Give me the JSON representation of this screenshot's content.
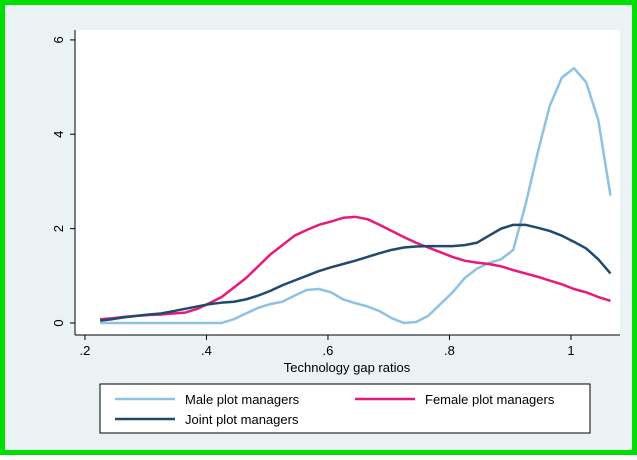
{
  "chart_data": {
    "type": "line",
    "xlabel": "Technology gap ratios",
    "x": [
      0.225,
      0.245,
      0.265,
      0.285,
      0.305,
      0.325,
      0.345,
      0.365,
      0.385,
      0.405,
      0.425,
      0.445,
      0.465,
      0.485,
      0.505,
      0.525,
      0.545,
      0.565,
      0.585,
      0.605,
      0.625,
      0.645,
      0.665,
      0.685,
      0.705,
      0.725,
      0.745,
      0.765,
      0.785,
      0.805,
      0.825,
      0.845,
      0.865,
      0.885,
      0.905,
      0.925,
      0.945,
      0.965,
      0.985,
      1.005,
      1.025,
      1.045,
      1.065
    ],
    "series": [
      {
        "name": "Male plot managers",
        "color": "#8ec2e4",
        "values": [
          0,
          0,
          0,
          0,
          0,
          0,
          0,
          0,
          0,
          0,
          0,
          0.08,
          0.2,
          0.32,
          0.4,
          0.45,
          0.58,
          0.7,
          0.72,
          0.65,
          0.5,
          0.42,
          0.35,
          0.25,
          0.1,
          0,
          0.02,
          0.15,
          0.4,
          0.65,
          0.95,
          1.15,
          1.27,
          1.35,
          1.55,
          2.5,
          3.6,
          4.6,
          5.2,
          5.4,
          5.1,
          4.3,
          2.7
        ]
      },
      {
        "name": "Female plot managers",
        "color": "#e8197a",
        "values": [
          0.08,
          0.1,
          0.13,
          0.15,
          0.17,
          0.18,
          0.2,
          0.22,
          0.3,
          0.42,
          0.55,
          0.75,
          0.95,
          1.2,
          1.45,
          1.65,
          1.85,
          1.97,
          2.08,
          2.15,
          2.23,
          2.25,
          2.2,
          2.08,
          1.95,
          1.82,
          1.7,
          1.6,
          1.5,
          1.4,
          1.32,
          1.28,
          1.25,
          1.2,
          1.12,
          1.05,
          0.98,
          0.9,
          0.82,
          0.72,
          0.65,
          0.55,
          0.47
        ]
      },
      {
        "name": "Joint plot managers",
        "color": "#1f4a6e",
        "values": [
          0.05,
          0.08,
          0.12,
          0.15,
          0.18,
          0.2,
          0.25,
          0.3,
          0.35,
          0.4,
          0.43,
          0.45,
          0.5,
          0.58,
          0.68,
          0.8,
          0.9,
          1.0,
          1.1,
          1.18,
          1.25,
          1.32,
          1.4,
          1.48,
          1.55,
          1.6,
          1.62,
          1.63,
          1.63,
          1.63,
          1.65,
          1.7,
          1.85,
          2.0,
          2.08,
          2.08,
          2.02,
          1.95,
          1.85,
          1.72,
          1.58,
          1.35,
          1.05
        ]
      }
    ],
    "xlim": [
      0.1836,
      1.0807
    ],
    "xticks": [
      {
        "value": 0.2,
        "label": ".2"
      },
      {
        "value": 0.4,
        "label": ".4"
      },
      {
        "value": 0.6,
        "label": ".6"
      },
      {
        "value": 0.8,
        "label": ".8"
      },
      1
    ],
    "ylim": [
      -0.255,
      6.21
    ],
    "yticks": [
      0,
      2,
      4,
      6
    ]
  }
}
